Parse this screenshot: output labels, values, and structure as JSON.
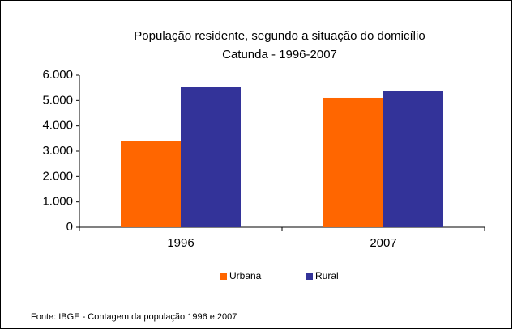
{
  "chart_data": {
    "type": "bar",
    "title": "População residente, segundo a situação do domicílio",
    "subtitle": "Catunda - 1996-2007",
    "categories": [
      "1996",
      "2007"
    ],
    "series": [
      {
        "name": "Urbana",
        "color": "#ff6600",
        "values": [
          3415,
          5107
        ]
      },
      {
        "name": "Rural",
        "color": "#333399",
        "values": [
          5522,
          5362
        ]
      }
    ],
    "ylim": [
      0,
      6000
    ],
    "yticks": [
      0,
      {
        "value": 1000,
        "label": "1.000"
      },
      {
        "value": 2000,
        "label": "2.000"
      },
      {
        "value": 3000,
        "label": "3.000"
      },
      {
        "value": 4000,
        "label": "4.000"
      },
      {
        "value": 5000,
        "label": "5.000"
      },
      {
        "value": 6000,
        "label": "6.000"
      }
    ],
    "legend": "bottom",
    "source": "Fonte: IBGE - Contagem da população 1996 e 2007"
  }
}
